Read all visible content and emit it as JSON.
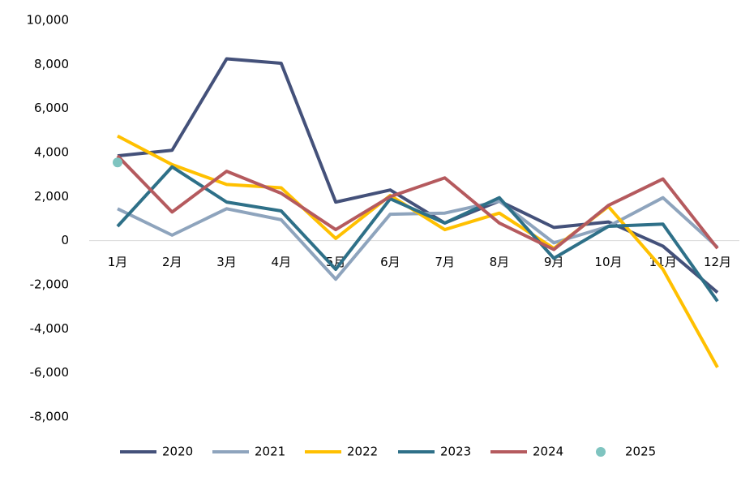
{
  "chart_data": {
    "type": "line",
    "categories": [
      "1月",
      "2月",
      "3月",
      "4月",
      "5月",
      "6月",
      "7月",
      "8月",
      "9月",
      "10月",
      "11月",
      "12月"
    ],
    "ylim": [
      -8000,
      10000
    ],
    "yticks": [
      {
        "value": -8000,
        "label": "-8,000"
      },
      {
        "value": -6000,
        "label": "-6,000"
      },
      {
        "value": -4000,
        "label": "-4,000"
      },
      {
        "value": -2000,
        "label": "-2,000"
      },
      0,
      {
        "value": 2000,
        "label": "2,000"
      },
      {
        "value": 4000,
        "label": "4,000"
      },
      {
        "value": 6000,
        "label": "6,000"
      },
      {
        "value": 8000,
        "label": "8,000"
      },
      {
        "value": 10000,
        "label": "10,000"
      }
    ],
    "grid": false,
    "legend": "bottom",
    "series": [
      {
        "name": "2020",
        "color": "#44517a",
        "values": [
          3850,
          4100,
          8250,
          8050,
          1750,
          2300,
          800,
          1800,
          600,
          850,
          -250,
          -2350
        ]
      },
      {
        "name": "2021",
        "color": "#8ea4bd",
        "values": [
          1450,
          250,
          1450,
          950,
          -1750,
          1200,
          1250,
          1800,
          -100,
          650,
          1950,
          -300
        ]
      },
      {
        "name": "2022",
        "color": "#ffc000",
        "values": [
          4750,
          3450,
          2550,
          2400,
          100,
          2050,
          500,
          1250,
          -350,
          1550,
          -1300,
          -5750
        ]
      },
      {
        "name": "2023",
        "color": "#2e7088",
        "values": [
          650,
          3350,
          1750,
          1350,
          -1300,
          1900,
          800,
          1950,
          -800,
          650,
          750,
          -2750
        ]
      },
      {
        "name": "2024",
        "color": "#b55a5e",
        "values": [
          3850,
          1300,
          3150,
          2150,
          500,
          2000,
          2850,
          800,
          -400,
          1600,
          2800,
          -350
        ]
      },
      {
        "name": "2025",
        "color": "#7fc4c0",
        "type": "scatter",
        "values": [
          3550,
          null,
          null,
          null,
          null,
          null,
          null,
          null,
          null,
          null,
          null,
          null
        ]
      }
    ]
  }
}
